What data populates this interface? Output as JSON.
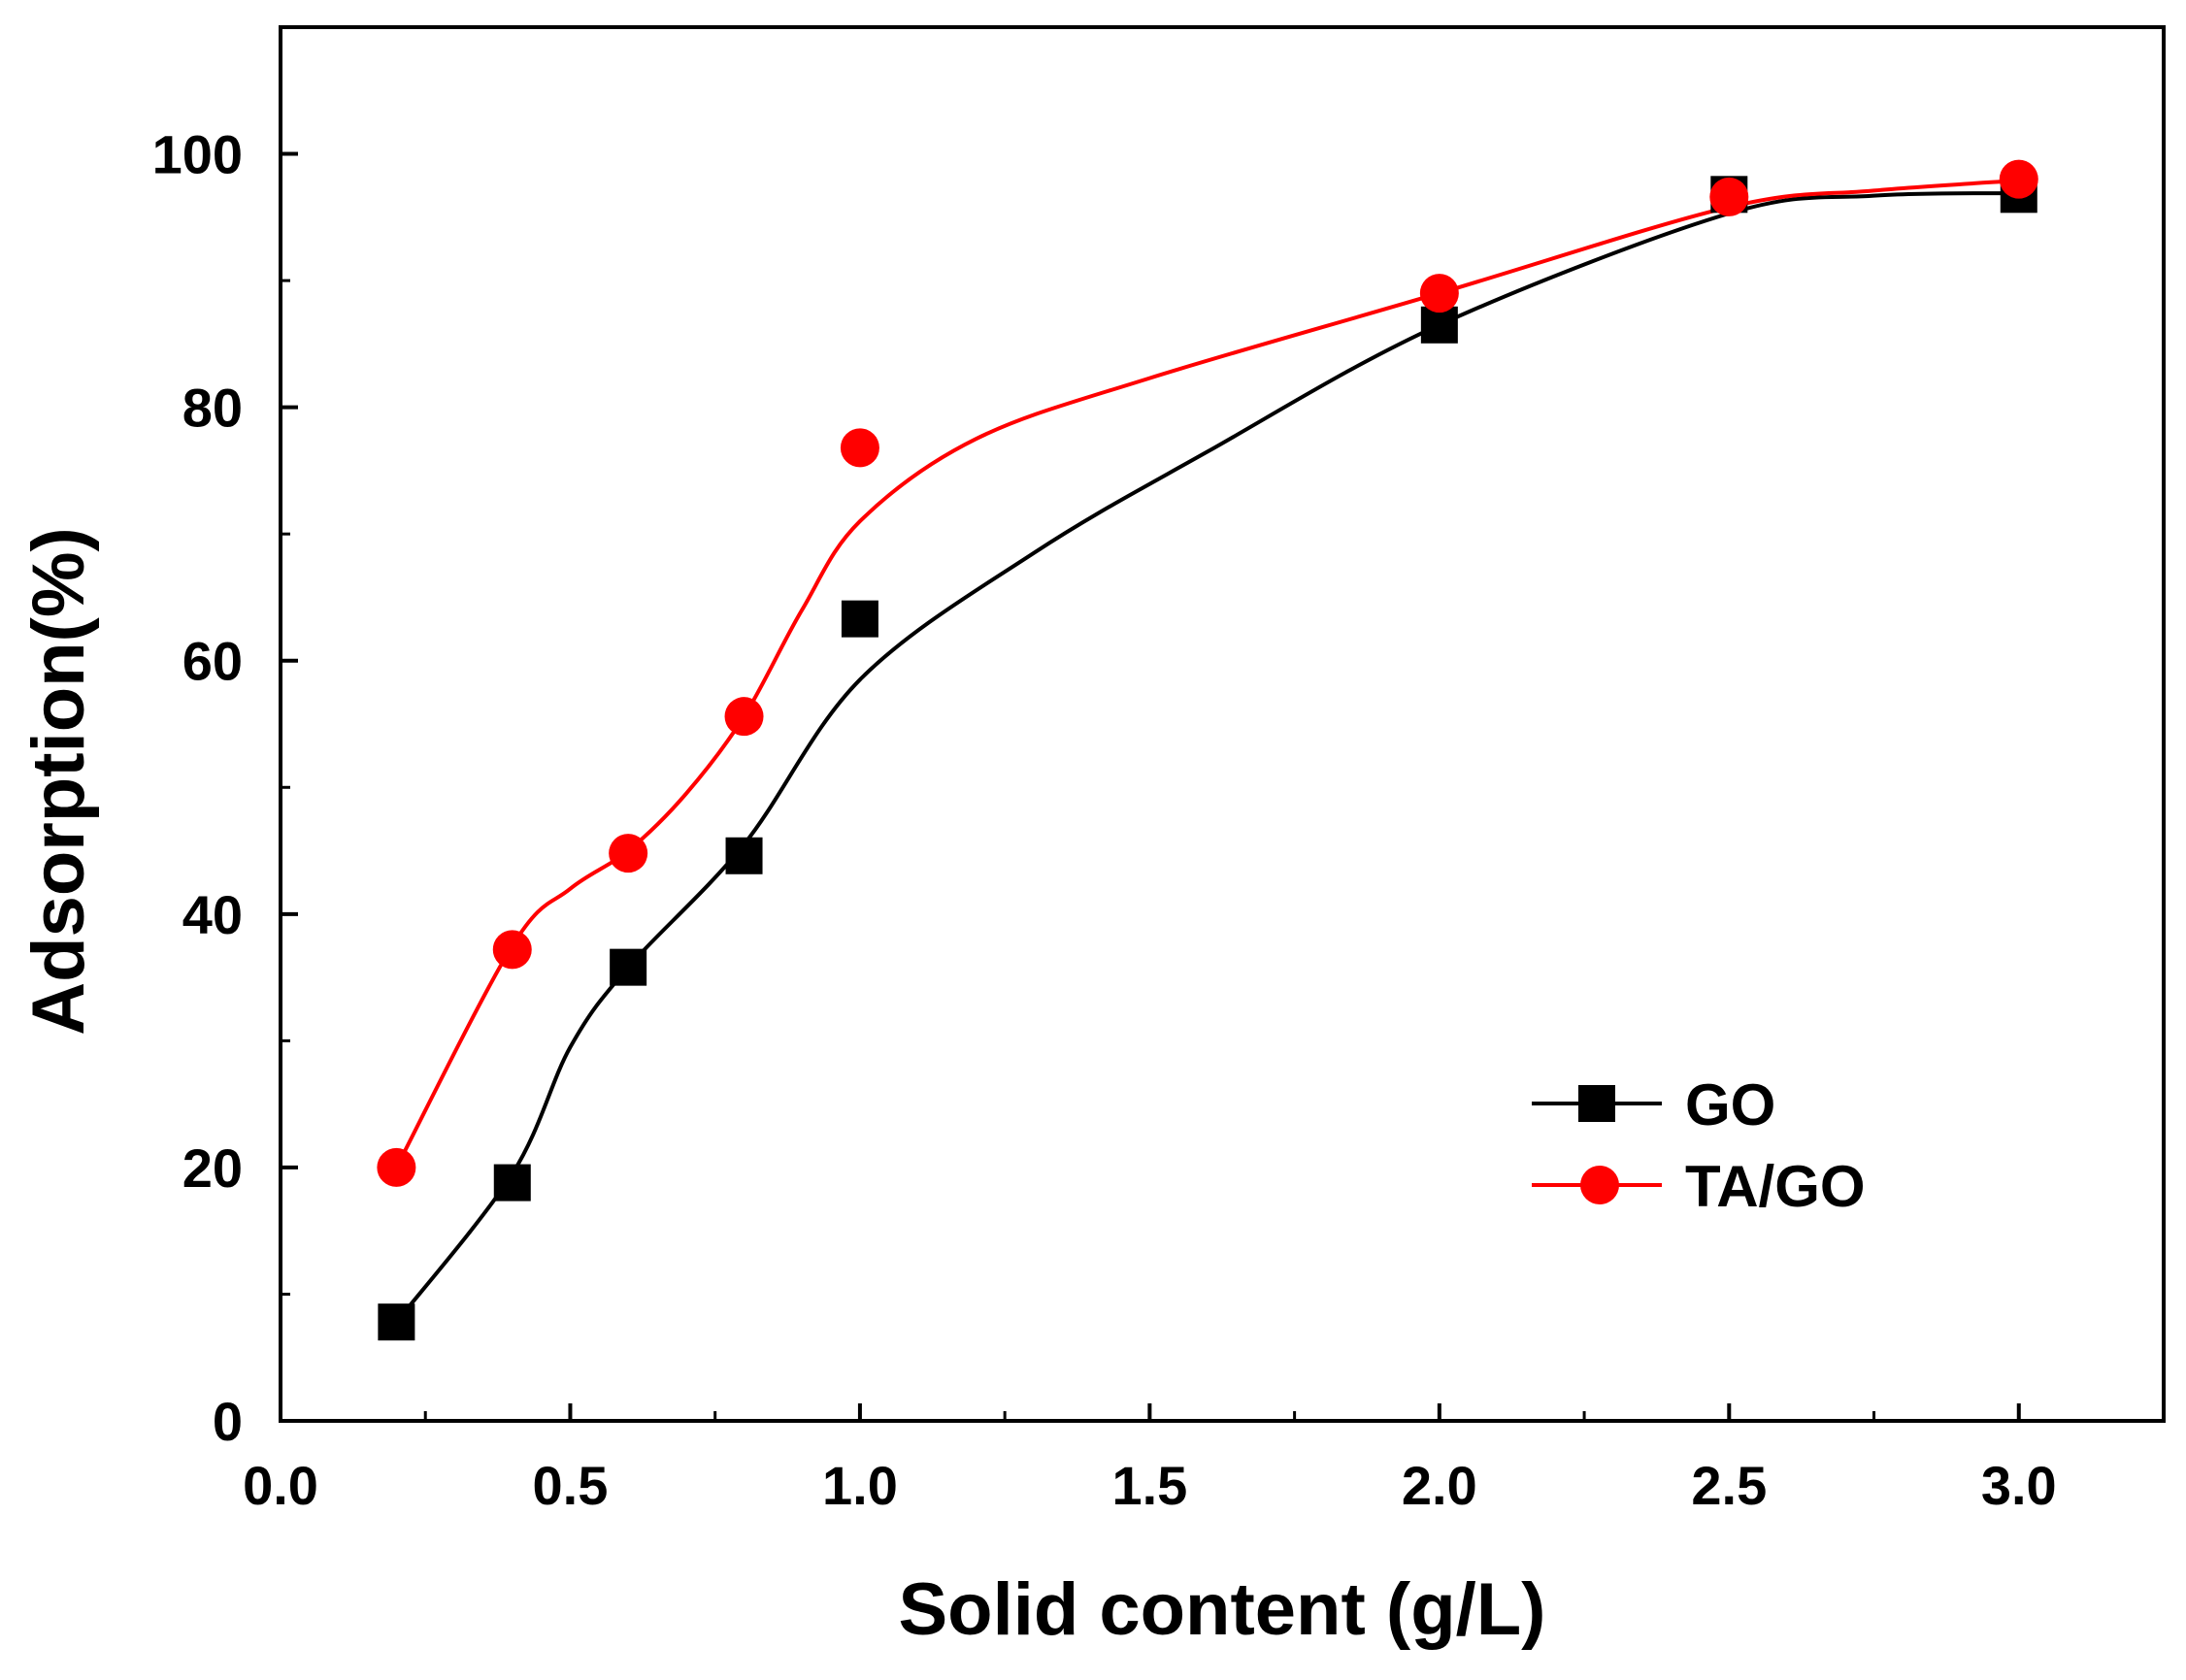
{
  "chart_data": {
    "type": "line",
    "title": "",
    "xlabel": "Solid content (g/L)",
    "ylabel": "Adsorption(%)",
    "xlim": [
      0.0,
      3.25
    ],
    "ylim": [
      0,
      110
    ],
    "x_ticks": [
      0.0,
      0.5,
      1.0,
      1.5,
      2.0,
      2.5,
      3.0
    ],
    "x_tick_labels": [
      "0.0",
      "0.5",
      "1.0",
      "1.5",
      "2.0",
      "2.5",
      "3.0"
    ],
    "y_ticks": [
      0,
      20,
      40,
      60,
      80,
      100
    ],
    "y_tick_labels": [
      "0",
      "20",
      "40",
      "60",
      "80",
      "100"
    ],
    "grid": false,
    "legend_position": "lower-right",
    "series": [
      {
        "name": "GO",
        "marker": "square",
        "color": "#000000",
        "x": [
          0.2,
          0.4,
          0.6,
          0.8,
          1.0,
          2.0,
          2.5,
          3.0
        ],
        "y": [
          7.8,
          18.8,
          35.8,
          44.6,
          63.3,
          86.5,
          96.8,
          96.8
        ],
        "curve_x": [
          0.2,
          0.4,
          0.5,
          0.6,
          0.8,
          1.0,
          1.3,
          1.6,
          2.0,
          2.5,
          2.75,
          3.0
        ],
        "curve_y": [
          7.8,
          19.5,
          29.5,
          35.8,
          45.5,
          58.5,
          68.5,
          76.5,
          86.5,
          95.3,
          96.7,
          96.9
        ]
      },
      {
        "name": "TA/GO",
        "marker": "circle",
        "color": "#ff0000",
        "x": [
          0.2,
          0.4,
          0.6,
          0.8,
          1.0,
          2.0,
          2.5,
          3.0
        ],
        "y": [
          20.0,
          37.2,
          44.8,
          55.6,
          76.8,
          89.0,
          96.6,
          98.0
        ],
        "curve_x": [
          0.2,
          0.4,
          0.5,
          0.6,
          0.7,
          0.8,
          0.9,
          1.0,
          1.2,
          1.5,
          2.0,
          2.5,
          2.75,
          3.0
        ],
        "curve_y": [
          20.0,
          37.5,
          42.0,
          45.0,
          49.5,
          55.6,
          64.0,
          71.0,
          77.5,
          82.3,
          89.0,
          95.8,
          97.1,
          97.9
        ]
      }
    ]
  }
}
